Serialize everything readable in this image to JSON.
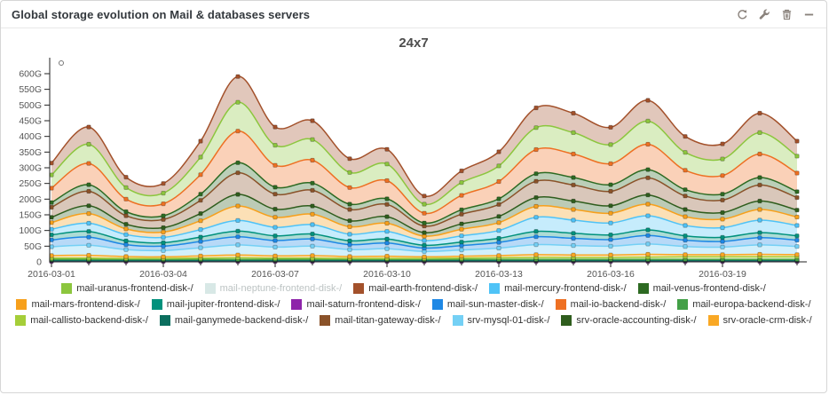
{
  "panel": {
    "title": "Global storage evolution on Mail & databases servers",
    "toolbar": [
      {
        "name": "refresh"
      },
      {
        "name": "settings-wrench"
      },
      {
        "name": "delete-trash"
      },
      {
        "name": "minimize"
      }
    ]
  },
  "chart_data": {
    "type": "area",
    "stacked": true,
    "smooth": true,
    "title": "24x7",
    "grid": false,
    "legend_position": "bottom",
    "unit": "G",
    "ylim": [
      0,
      620
    ],
    "y_tick_step": 50,
    "y_tick_labels": [
      "600G",
      "550G",
      "500G",
      "450G",
      "400G",
      "350G",
      "300G",
      "250G",
      "200G",
      "150G",
      "100G",
      "50G",
      "0"
    ],
    "x": [
      "2016-03-01",
      "2016-03-02",
      "2016-03-03",
      "2016-03-04",
      "2016-03-05",
      "2016-03-06",
      "2016-03-07",
      "2016-03-08",
      "2016-03-09",
      "2016-03-10",
      "2016-03-11",
      "2016-03-12",
      "2016-03-13",
      "2016-03-14",
      "2016-03-15",
      "2016-03-16",
      "2016-03-17",
      "2016-03-18",
      "2016-03-19",
      "2016-03-20",
      "2016-03-21"
    ],
    "x_major_tick_labels": [
      "2016-03-01",
      "2016-03-04",
      "2016-03-07",
      "2016-03-10",
      "2016-03-13",
      "2016-03-16",
      "2016-03-19"
    ],
    "series": [
      {
        "label": "mail-saturn-frontend-disk-/",
        "color": "#8E24AA",
        "values": [
          1,
          1,
          1,
          1,
          1,
          1,
          1,
          1,
          1,
          1,
          1,
          1,
          1,
          1,
          1,
          1,
          1,
          1,
          1,
          1,
          1
        ]
      },
      {
        "label": "mail-ganymede-backend-disk-/",
        "color": "#0B6E5E",
        "values": [
          3,
          3,
          3,
          3,
          3,
          3,
          3,
          3,
          3,
          3,
          3,
          3,
          3,
          3,
          3,
          3,
          3,
          3,
          3,
          3,
          3
        ]
      },
      {
        "label": "mail-europa-backend-disk-/",
        "color": "#43A047",
        "values": [
          4,
          4,
          4,
          4,
          4,
          4,
          4,
          4,
          4,
          4,
          4,
          4,
          4,
          4,
          4,
          4,
          4,
          4,
          4,
          4,
          4
        ]
      },
      {
        "label": "mail-callisto-backend-disk-/",
        "color": "#A5CE39",
        "values": [
          4,
          4,
          3,
          3,
          4,
          5,
          4,
          4,
          3,
          3,
          3,
          4,
          5,
          6,
          6,
          6,
          7,
          8,
          8,
          8,
          8
        ]
      },
      {
        "label": "srv-oracle-crm-disk-/",
        "color": "#F9A825",
        "values": [
          8,
          9,
          6,
          5,
          7,
          9,
          7,
          8,
          6,
          7,
          5,
          6,
          7,
          9,
          8,
          8,
          9,
          7,
          7,
          8,
          7
        ]
      },
      {
        "label": "srv-mysql-01-disk-/",
        "color": "#74D0F5",
        "values": [
          28,
          32,
          22,
          20,
          26,
          32,
          28,
          30,
          22,
          24,
          17,
          20,
          24,
          32,
          30,
          28,
          33,
          26,
          24,
          30,
          26
        ]
      },
      {
        "label": "mail-sun-master-disk-/",
        "color": "#1E88E5",
        "values": [
          22,
          26,
          16,
          14,
          20,
          26,
          21,
          23,
          16,
          18,
          11,
          14,
          18,
          25,
          23,
          21,
          27,
          20,
          18,
          23,
          20
        ]
      },
      {
        "label": "mail-jupiter-frontend-disk-/",
        "color": "#00917C",
        "values": [
          16,
          18,
          12,
          11,
          14,
          18,
          15,
          16,
          12,
          13,
          9,
          11,
          13,
          17,
          16,
          15,
          18,
          14,
          13,
          16,
          14
        ]
      },
      {
        "label": "mail-mercury-frontend-disk-/",
        "color": "#4FC3F7",
        "values": [
          18,
          26,
          20,
          17,
          24,
          34,
          27,
          30,
          21,
          24,
          15,
          20,
          25,
          45,
          42,
          38,
          45,
          33,
          31,
          40,
          33
        ]
      },
      {
        "label": "mail-mars-frontend-disk-/",
        "color": "#F7A01B",
        "values": [
          21,
          31,
          18,
          17,
          28,
          46,
          32,
          33,
          24,
          26,
          14,
          21,
          25,
          35,
          34,
          31,
          37,
          28,
          27,
          34,
          27
        ]
      },
      {
        "label": "srv-oracle-accounting-disk-/",
        "color": "#2F5D1D",
        "values": [
          17,
          25,
          15,
          14,
          23,
          37,
          26,
          26,
          19,
          21,
          11,
          17,
          20,
          28,
          27,
          24,
          29,
          23,
          21,
          27,
          22
        ]
      },
      {
        "label": "mail-titan-gateway-disk-/",
        "color": "#8A5229",
        "values": [
          32,
          46,
          27,
          26,
          42,
          69,
          48,
          50,
          36,
          39,
          21,
          31,
          38,
          52,
          51,
          46,
          55,
          43,
          40,
          51,
          40
        ]
      },
      {
        "label": "mail-venus-frontend-disk-/",
        "color": "#2D6A22",
        "values": [
          15,
          21,
          13,
          12,
          20,
          32,
          22,
          23,
          17,
          18,
          10,
          14,
          18,
          24,
          24,
          21,
          26,
          20,
          19,
          24,
          19
        ]
      },
      {
        "label": "mail-io-backend-disk-/",
        "color": "#EE7023",
        "values": [
          46,
          68,
          40,
          38,
          62,
          101,
          70,
          73,
          53,
          58,
          31,
          46,
          55,
          77,
          75,
          67,
          81,
          62,
          59,
          75,
          59
        ]
      },
      {
        "label": "mail-uranus-frontend-disk-/",
        "color": "#8CC63E",
        "values": [
          42,
          61,
          37,
          34,
          56,
          92,
          64,
          66,
          48,
          53,
          29,
          41,
          50,
          70,
          68,
          61,
          74,
          57,
          53,
          68,
          54
        ]
      },
      {
        "label": "mail-earth-frontend-disk-/",
        "color": "#A3512B",
        "values": [
          38,
          55,
          33,
          31,
          51,
          82,
          58,
          60,
          44,
          47,
          26,
          37,
          45,
          63,
          62,
          55,
          66,
          51,
          48,
          62,
          48
        ]
      }
    ],
    "legend": [
      {
        "label": "mail-uranus-frontend-disk-/",
        "color": "#8CC63E",
        "disabled": false
      },
      {
        "label": "mail-neptune-frontend-disk-/",
        "color": "#D8E8E6",
        "disabled": true
      },
      {
        "label": "mail-earth-frontend-disk-/",
        "color": "#A3512B",
        "disabled": false
      },
      {
        "label": "mail-mercury-frontend-disk-/",
        "color": "#4FC3F7",
        "disabled": false
      },
      {
        "label": "mail-venus-frontend-disk-/",
        "color": "#2D6A22",
        "disabled": false
      },
      {
        "label": "mail-mars-frontend-disk-/",
        "color": "#F7A01B",
        "disabled": false
      },
      {
        "label": "mail-jupiter-frontend-disk-/",
        "color": "#00917C",
        "disabled": false
      },
      {
        "label": "mail-saturn-frontend-disk-/",
        "color": "#8E24AA",
        "disabled": false
      },
      {
        "label": "mail-sun-master-disk-/",
        "color": "#1E88E5",
        "disabled": false
      },
      {
        "label": "mail-io-backend-disk-/",
        "color": "#EE7023",
        "disabled": false
      },
      {
        "label": "mail-europa-backend-disk-/",
        "color": "#43A047",
        "disabled": false
      },
      {
        "label": "mail-callisto-backend-disk-/",
        "color": "#A5CE39",
        "disabled": false
      },
      {
        "label": "mail-ganymede-backend-disk-/",
        "color": "#0B6E5E",
        "disabled": false
      },
      {
        "label": "mail-titan-gateway-disk-/",
        "color": "#8A5229",
        "disabled": false
      },
      {
        "label": "srv-mysql-01-disk-/",
        "color": "#74D0F5",
        "disabled": false
      },
      {
        "label": "srv-oracle-accounting-disk-/",
        "color": "#2F5D1D",
        "disabled": false
      },
      {
        "label": "srv-oracle-crm-disk-/",
        "color": "#F9A825",
        "disabled": false
      }
    ]
  }
}
